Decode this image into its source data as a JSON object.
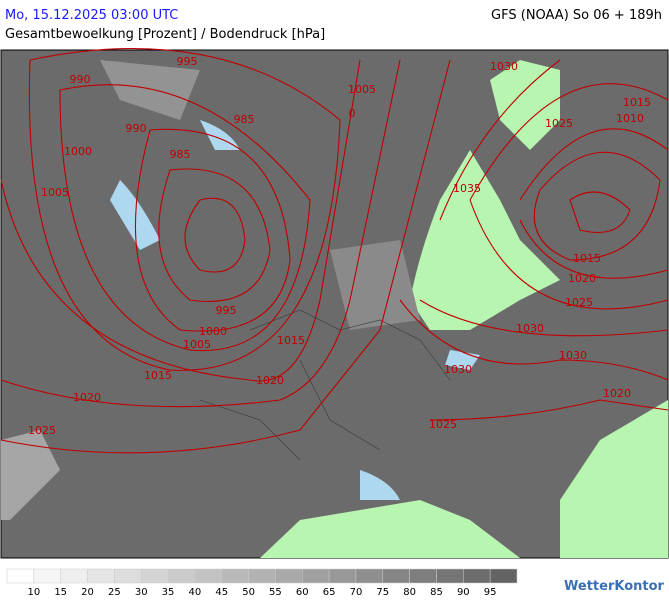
{
  "header": {
    "date": "Mo, 15.12.2025 03:00 UTC",
    "title": "Gesamtbewoelkung [Prozent] / Bodendruck [hPa]",
    "model": "GFS (NOAA) So 06 + 189h"
  },
  "isobar_labels": [
    "990",
    "995",
    "1005",
    "0",
    "985",
    "990",
    "1000",
    "985",
    "1005",
    "995",
    "1000",
    "1005",
    "1015",
    "1015",
    "1020",
    "1020",
    "1025",
    "1030",
    "1025",
    "1015",
    "1010",
    "1035",
    "1015",
    "1020",
    "1025",
    "1030",
    "1030",
    "1030",
    "1020",
    "1025"
  ],
  "legend": {
    "labels": [
      10,
      15,
      20,
      25,
      30,
      35,
      40,
      45,
      50,
      55,
      60,
      65,
      70,
      75,
      80,
      85,
      90,
      95
    ]
  },
  "logo": "WetterKontor"
}
